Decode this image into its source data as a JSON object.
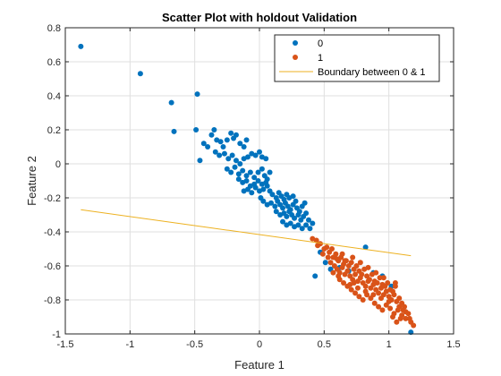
{
  "chart_data": {
    "type": "scatter",
    "title": "Scatter Plot with holdout Validation",
    "xlabel": "Feature 1",
    "ylabel": "Feature 2",
    "xlim": [
      -1.5,
      1.5
    ],
    "ylim": [
      -1,
      0.8
    ],
    "xticks": [
      "-1.5",
      "-1",
      "-0.5",
      "0",
      "0.5",
      "1",
      "1.5"
    ],
    "yticks": [
      "-1",
      "-0.8",
      "-0.6",
      "-0.4",
      "-0.2",
      "0",
      "0.2",
      "0.4",
      "0.6",
      "0.8"
    ],
    "grid": true,
    "legend_position": "top-right",
    "series": [
      {
        "name": "0",
        "color": "#0072BD",
        "marker": "dot",
        "points": [
          [
            -1.38,
            0.69
          ],
          [
            -0.92,
            0.53
          ],
          [
            -0.68,
            0.36
          ],
          [
            -0.66,
            0.19
          ],
          [
            -0.48,
            0.41
          ],
          [
            -0.49,
            0.2
          ],
          [
            -0.46,
            0.02
          ],
          [
            -0.43,
            0.12
          ],
          [
            -0.4,
            0.1
          ],
          [
            -0.37,
            0.17
          ],
          [
            -0.35,
            0.2
          ],
          [
            -0.33,
            0.14
          ],
          [
            -0.3,
            0.13
          ],
          [
            -0.28,
            0.1
          ],
          [
            -0.25,
            0.14
          ],
          [
            -0.22,
            0.18
          ],
          [
            -0.2,
            0.15
          ],
          [
            -0.18,
            0.17
          ],
          [
            -0.15,
            0.12
          ],
          [
            -0.12,
            0.1
          ],
          [
            -0.1,
            0.14
          ],
          [
            -0.34,
            0.07
          ],
          [
            -0.31,
            0.05
          ],
          [
            -0.27,
            0.06
          ],
          [
            -0.24,
            0.03
          ],
          [
            -0.21,
            0.05
          ],
          [
            -0.18,
            0.02
          ],
          [
            -0.15,
            0.0
          ],
          [
            -0.12,
            0.03
          ],
          [
            -0.09,
            0.04
          ],
          [
            -0.06,
            0.06
          ],
          [
            -0.03,
            0.05
          ],
          [
            0.0,
            0.07
          ],
          [
            0.02,
            0.04
          ],
          [
            0.05,
            0.03
          ],
          [
            -0.25,
            -0.03
          ],
          [
            -0.22,
            -0.05
          ],
          [
            -0.19,
            -0.02
          ],
          [
            -0.16,
            -0.06
          ],
          [
            -0.13,
            -0.04
          ],
          [
            -0.1,
            -0.07
          ],
          [
            -0.07,
            -0.05
          ],
          [
            -0.04,
            -0.08
          ],
          [
            -0.01,
            -0.05
          ],
          [
            0.02,
            -0.03
          ],
          [
            0.04,
            -0.07
          ],
          [
            -0.16,
            -0.09
          ],
          [
            -0.13,
            -0.11
          ],
          [
            -0.1,
            -0.1
          ],
          [
            -0.07,
            -0.13
          ],
          [
            -0.04,
            -0.12
          ],
          [
            -0.01,
            -0.1
          ],
          [
            0.02,
            -0.12
          ],
          [
            0.05,
            -0.11
          ],
          [
            -0.12,
            -0.16
          ],
          [
            -0.09,
            -0.15
          ],
          [
            -0.06,
            -0.17
          ],
          [
            -0.03,
            -0.14
          ],
          [
            0.0,
            -0.16
          ],
          [
            0.03,
            -0.15
          ],
          [
            0.06,
            -0.13
          ],
          [
            0.08,
            -0.16
          ],
          [
            0.1,
            -0.18
          ],
          [
            0.13,
            -0.2
          ],
          [
            0.15,
            -0.17
          ],
          [
            0.17,
            -0.19
          ],
          [
            0.19,
            -0.21
          ],
          [
            0.21,
            -0.18
          ],
          [
            0.23,
            -0.2
          ],
          [
            0.26,
            -0.19
          ],
          [
            0.28,
            -0.22
          ],
          [
            0.03,
            -0.22
          ],
          [
            0.06,
            -0.24
          ],
          [
            0.09,
            -0.23
          ],
          [
            0.12,
            -0.25
          ],
          [
            0.14,
            -0.22
          ],
          [
            0.16,
            -0.24
          ],
          [
            0.18,
            -0.26
          ],
          [
            0.2,
            -0.23
          ],
          [
            0.22,
            -0.25
          ],
          [
            0.24,
            -0.27
          ],
          [
            0.26,
            -0.24
          ],
          [
            0.29,
            -0.26
          ],
          [
            0.31,
            -0.28
          ],
          [
            0.33,
            -0.25
          ],
          [
            0.35,
            -0.23
          ],
          [
            0.13,
            -0.28
          ],
          [
            0.16,
            -0.3
          ],
          [
            0.19,
            -0.29
          ],
          [
            0.21,
            -0.31
          ],
          [
            0.23,
            -0.28
          ],
          [
            0.25,
            -0.3
          ],
          [
            0.27,
            -0.32
          ],
          [
            0.3,
            -0.3
          ],
          [
            0.32,
            -0.33
          ],
          [
            0.34,
            -0.31
          ],
          [
            0.36,
            -0.29
          ],
          [
            0.38,
            -0.33
          ],
          [
            0.18,
            -0.34
          ],
          [
            0.21,
            -0.36
          ],
          [
            0.24,
            -0.35
          ],
          [
            0.27,
            -0.37
          ],
          [
            0.3,
            -0.36
          ],
          [
            0.33,
            -0.38
          ],
          [
            0.36,
            -0.36
          ],
          [
            0.39,
            -0.38
          ],
          [
            0.41,
            -0.35
          ],
          [
            0.06,
            -0.09
          ],
          [
            0.08,
            -0.05
          ],
          [
            0.01,
            -0.2
          ],
          [
            0.43,
            -0.66
          ],
          [
            0.47,
            -0.52
          ],
          [
            0.51,
            -0.58
          ],
          [
            0.55,
            -0.62
          ],
          [
            0.58,
            -0.55
          ],
          [
            0.62,
            -0.61
          ],
          [
            0.69,
            -0.63
          ],
          [
            0.82,
            -0.49
          ],
          [
            0.88,
            -0.64
          ],
          [
            0.95,
            -0.66
          ],
          [
            1.02,
            -0.72
          ],
          [
            1.17,
            -0.99
          ]
        ]
      },
      {
        "name": "1",
        "color": "#D95319",
        "marker": "dot",
        "points": [
          [
            0.41,
            -0.44
          ],
          [
            0.44,
            -0.45
          ],
          [
            0.47,
            -0.47
          ],
          [
            0.5,
            -0.5
          ],
          [
            0.52,
            -0.49
          ],
          [
            0.54,
            -0.52
          ],
          [
            0.57,
            -0.55
          ],
          [
            0.59,
            -0.53
          ],
          [
            0.61,
            -0.57
          ],
          [
            0.63,
            -0.55
          ],
          [
            0.65,
            -0.59
          ],
          [
            0.67,
            -0.57
          ],
          [
            0.69,
            -0.6
          ],
          [
            0.71,
            -0.58
          ],
          [
            0.73,
            -0.62
          ],
          [
            0.55,
            -0.58
          ],
          [
            0.58,
            -0.6
          ],
          [
            0.6,
            -0.62
          ],
          [
            0.62,
            -0.64
          ],
          [
            0.64,
            -0.61
          ],
          [
            0.66,
            -0.65
          ],
          [
            0.68,
            -0.63
          ],
          [
            0.7,
            -0.66
          ],
          [
            0.72,
            -0.68
          ],
          [
            0.74,
            -0.65
          ],
          [
            0.76,
            -0.69
          ],
          [
            0.78,
            -0.67
          ],
          [
            0.8,
            -0.7
          ],
          [
            0.82,
            -0.72
          ],
          [
            0.84,
            -0.69
          ],
          [
            0.86,
            -0.73
          ],
          [
            0.88,
            -0.71
          ],
          [
            0.9,
            -0.74
          ],
          [
            0.92,
            -0.76
          ],
          [
            0.94,
            -0.73
          ],
          [
            0.96,
            -0.77
          ],
          [
            0.98,
            -0.75
          ],
          [
            1.0,
            -0.78
          ],
          [
            1.02,
            -0.8
          ],
          [
            1.04,
            -0.77
          ],
          [
            1.06,
            -0.81
          ],
          [
            1.08,
            -0.79
          ],
          [
            1.1,
            -0.82
          ],
          [
            1.12,
            -0.84
          ],
          [
            0.75,
            -0.6
          ],
          [
            0.77,
            -0.63
          ],
          [
            0.79,
            -0.65
          ],
          [
            0.81,
            -0.62
          ],
          [
            0.83,
            -0.66
          ],
          [
            0.85,
            -0.68
          ],
          [
            0.87,
            -0.65
          ],
          [
            0.89,
            -0.69
          ],
          [
            0.91,
            -0.7
          ],
          [
            0.93,
            -0.67
          ],
          [
            0.95,
            -0.71
          ],
          [
            0.97,
            -0.72
          ],
          [
            0.99,
            -0.7
          ],
          [
            1.01,
            -0.74
          ],
          [
            1.03,
            -0.75
          ],
          [
            1.05,
            -0.72
          ],
          [
            0.65,
            -0.7
          ],
          [
            0.68,
            -0.72
          ],
          [
            0.71,
            -0.74
          ],
          [
            0.74,
            -0.76
          ],
          [
            0.77,
            -0.78
          ],
          [
            0.8,
            -0.8
          ],
          [
            0.83,
            -0.77
          ],
          [
            0.86,
            -0.79
          ],
          [
            0.89,
            -0.82
          ],
          [
            0.92,
            -0.84
          ],
          [
            0.95,
            -0.86
          ],
          [
            0.98,
            -0.83
          ],
          [
            1.01,
            -0.85
          ],
          [
            1.04,
            -0.88
          ],
          [
            1.07,
            -0.86
          ],
          [
            1.1,
            -0.89
          ],
          [
            1.13,
            -0.91
          ],
          [
            1.15,
            -0.88
          ],
          [
            1.17,
            -0.93
          ],
          [
            1.19,
            -0.95
          ],
          [
            1.16,
            -0.91
          ],
          [
            1.13,
            -0.87
          ],
          [
            1.09,
            -0.91
          ],
          [
            1.06,
            -0.93
          ],
          [
            1.03,
            -0.9
          ],
          [
            0.56,
            -0.5
          ],
          [
            0.6,
            -0.56
          ],
          [
            0.64,
            -0.53
          ],
          [
            0.66,
            -0.57
          ],
          [
            0.72,
            -0.55
          ],
          [
            0.78,
            -0.58
          ],
          [
            0.84,
            -0.61
          ],
          [
            0.9,
            -0.64
          ],
          [
            0.96,
            -0.67
          ],
          [
            1.05,
            -0.7
          ],
          [
            0.62,
            -0.68
          ],
          [
            0.7,
            -0.71
          ],
          [
            0.76,
            -0.73
          ],
          [
            0.82,
            -0.75
          ],
          [
            0.88,
            -0.77
          ],
          [
            0.94,
            -0.79
          ],
          [
            1.0,
            -0.81
          ],
          [
            1.08,
            -0.84
          ],
          [
            1.11,
            -0.86
          ],
          [
            0.53,
            -0.55
          ],
          [
            0.49,
            -0.53
          ],
          [
            0.57,
            -0.64
          ],
          [
            0.61,
            -0.66
          ],
          [
            0.45,
            -0.48
          ],
          [
            0.73,
            -0.7
          ]
        ]
      }
    ],
    "boundary": {
      "name": "Boundary between 0 & 1",
      "color": "#EDB120",
      "x": [
        -1.38,
        1.17
      ],
      "y": [
        -0.27,
        -0.54
      ]
    }
  }
}
